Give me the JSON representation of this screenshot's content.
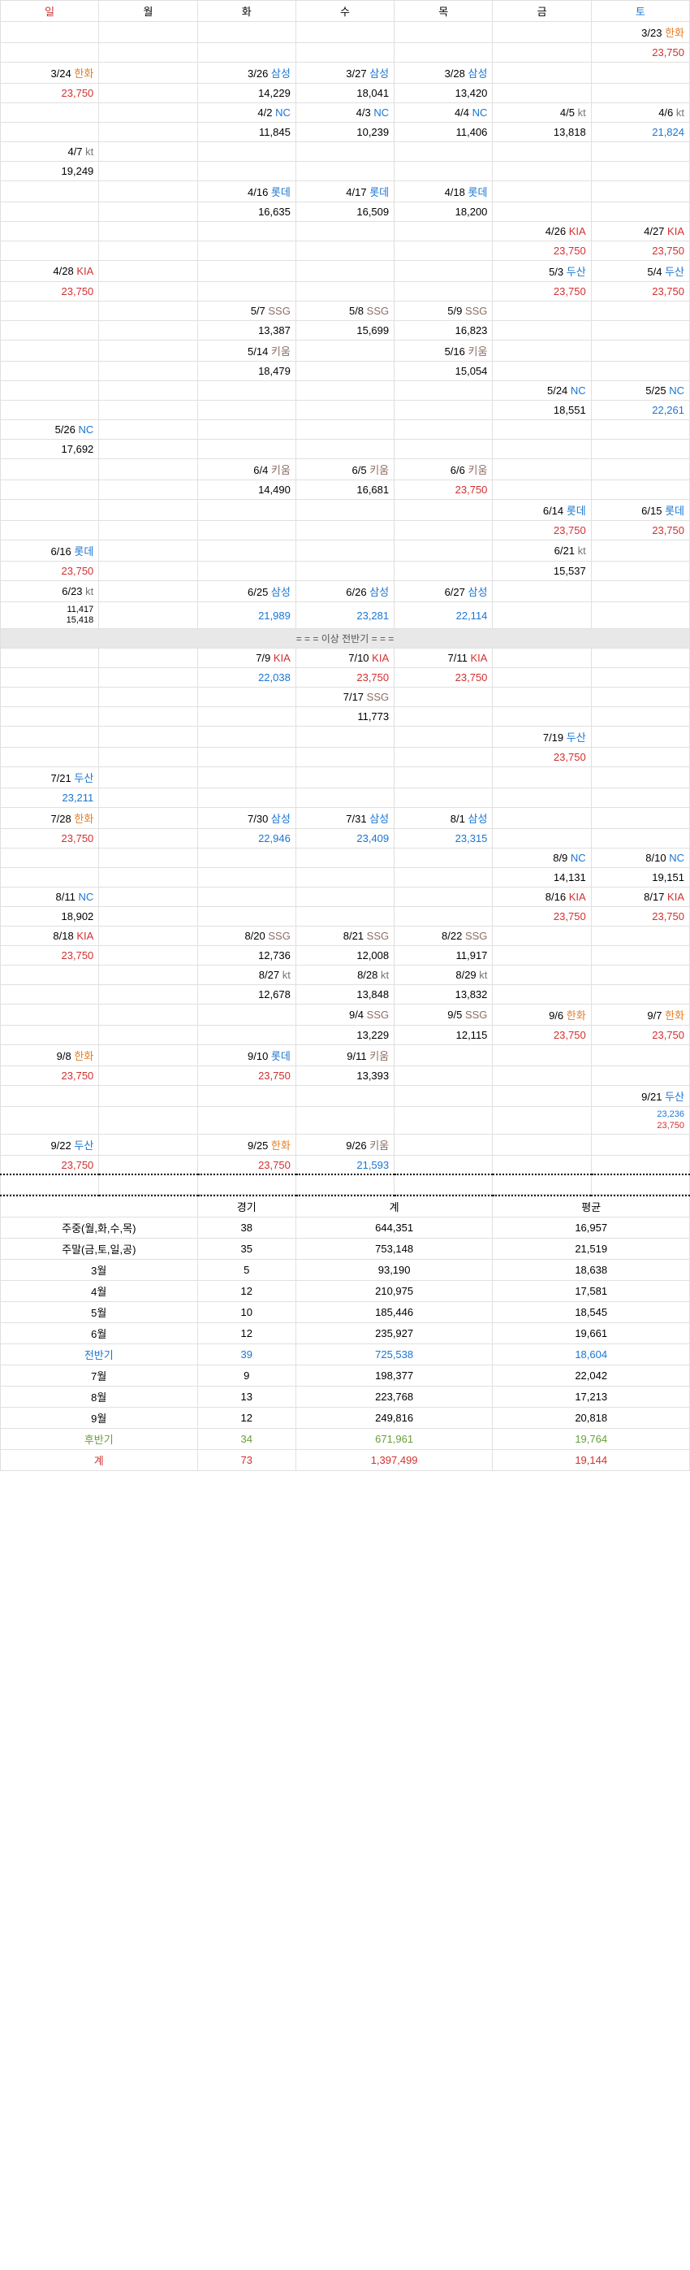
{
  "headers": [
    {
      "label": "일",
      "color": "c-red"
    },
    {
      "label": "월",
      "color": "c-black"
    },
    {
      "label": "화",
      "color": "c-black"
    },
    {
      "label": "수",
      "color": "c-black"
    },
    {
      "label": "목",
      "color": "c-black"
    },
    {
      "label": "금",
      "color": "c-black"
    },
    {
      "label": "토",
      "color": "c-blue"
    }
  ],
  "teams": {
    "hanwha": {
      "label": "한화",
      "color": "c-orange"
    },
    "samsung": {
      "label": "삼성",
      "color": "c-blue"
    },
    "nc": {
      "label": "NC",
      "color": "c-blue"
    },
    "kt": {
      "label": "kt",
      "color": "c-gray"
    },
    "lotte": {
      "label": "롯데",
      "color": "c-blue"
    },
    "kia": {
      "label": "KIA",
      "color": "c-red"
    },
    "doosan": {
      "label": "두산",
      "color": "c-blue"
    },
    "ssg": {
      "label": "SSG",
      "color": "c-brown"
    },
    "kiwoom": {
      "label": "키움",
      "color": "c-brown"
    }
  },
  "rows": [
    {
      "cells": [
        null,
        null,
        null,
        null,
        null,
        null,
        {
          "date": "3/23",
          "team": "hanwha"
        }
      ]
    },
    {
      "cells": [
        null,
        null,
        null,
        null,
        null,
        null,
        {
          "att": "23,750",
          "hl": true
        }
      ]
    },
    {
      "cells": [
        {
          "date": "3/24",
          "team": "hanwha"
        },
        null,
        {
          "date": "3/26",
          "team": "samsung"
        },
        {
          "date": "3/27",
          "team": "samsung"
        },
        {
          "date": "3/28",
          "team": "samsung"
        },
        null,
        null
      ]
    },
    {
      "cells": [
        {
          "att": "23,750",
          "hl": true
        },
        null,
        {
          "att": "14,229"
        },
        {
          "att": "18,041"
        },
        {
          "att": "13,420"
        },
        null,
        null
      ]
    },
    {
      "cells": [
        null,
        null,
        {
          "date": "4/2",
          "team": "nc"
        },
        {
          "date": "4/3",
          "team": "nc"
        },
        {
          "date": "4/4",
          "team": "nc"
        },
        {
          "date": "4/5",
          "team": "kt"
        },
        {
          "date": "4/6",
          "team": "kt"
        }
      ]
    },
    {
      "cells": [
        null,
        null,
        {
          "att": "11,845"
        },
        {
          "att": "10,239"
        },
        {
          "att": "11,406"
        },
        {
          "att": "13,818"
        },
        {
          "att": "21,824",
          "color": "c-blue"
        }
      ]
    },
    {
      "cells": [
        {
          "date": "4/7",
          "team": "kt"
        },
        null,
        null,
        null,
        null,
        null,
        null
      ]
    },
    {
      "cells": [
        {
          "att": "19,249"
        },
        null,
        null,
        null,
        null,
        null,
        null
      ]
    },
    {
      "cells": [
        null,
        null,
        {
          "date": "4/16",
          "team": "lotte"
        },
        {
          "date": "4/17",
          "team": "lotte"
        },
        {
          "date": "4/18",
          "team": "lotte"
        },
        null,
        null
      ]
    },
    {
      "cells": [
        null,
        null,
        {
          "att": "16,635"
        },
        {
          "att": "16,509"
        },
        {
          "att": "18,200"
        },
        null,
        null
      ]
    },
    {
      "cells": [
        null,
        null,
        null,
        null,
        null,
        {
          "date": "4/26",
          "team": "kia"
        },
        {
          "date": "4/27",
          "team": "kia"
        }
      ]
    },
    {
      "cells": [
        null,
        null,
        null,
        null,
        null,
        {
          "att": "23,750",
          "hl": true
        },
        {
          "att": "23,750",
          "hl": true
        }
      ]
    },
    {
      "cells": [
        {
          "date": "4/28",
          "team": "kia"
        },
        null,
        null,
        null,
        null,
        {
          "date": "5/3",
          "team": "doosan"
        },
        {
          "date": "5/4",
          "team": "doosan"
        }
      ]
    },
    {
      "cells": [
        {
          "att": "23,750",
          "hl": true
        },
        null,
        null,
        null,
        null,
        {
          "att": "23,750",
          "hl": true
        },
        {
          "att": "23,750",
          "hl": true
        }
      ]
    },
    {
      "cells": [
        null,
        null,
        {
          "date": "5/7",
          "team": "ssg"
        },
        {
          "date": "5/8",
          "team": "ssg"
        },
        {
          "date": "5/9",
          "team": "ssg"
        },
        null,
        null
      ]
    },
    {
      "cells": [
        null,
        null,
        {
          "att": "13,387"
        },
        {
          "att": "15,699"
        },
        {
          "att": "16,823"
        },
        null,
        null
      ]
    },
    {
      "cells": [
        null,
        null,
        {
          "date": "5/14",
          "team": "kiwoom"
        },
        null,
        {
          "date": "5/16",
          "team": "kiwoom"
        },
        null,
        null
      ]
    },
    {
      "cells": [
        null,
        null,
        {
          "att": "18,479"
        },
        null,
        {
          "att": "15,054"
        },
        null,
        null
      ]
    },
    {
      "cells": [
        null,
        null,
        null,
        null,
        null,
        {
          "date": "5/24",
          "team": "nc"
        },
        {
          "date": "5/25",
          "team": "nc"
        }
      ]
    },
    {
      "cells": [
        null,
        null,
        null,
        null,
        null,
        {
          "att": "18,551"
        },
        {
          "att": "22,261",
          "color": "c-blue"
        }
      ]
    },
    {
      "cells": [
        {
          "date": "5/26",
          "team": "nc"
        },
        null,
        null,
        null,
        null,
        null,
        null
      ]
    },
    {
      "cells": [
        {
          "att": "17,692"
        },
        null,
        null,
        null,
        null,
        null,
        null
      ]
    },
    {
      "cells": [
        null,
        null,
        {
          "date": "6/4",
          "team": "kiwoom"
        },
        {
          "date": "6/5",
          "team": "kiwoom"
        },
        {
          "date": "6/6",
          "team": "kiwoom"
        },
        null,
        null
      ]
    },
    {
      "cells": [
        null,
        null,
        {
          "att": "14,490"
        },
        {
          "att": "16,681"
        },
        {
          "att": "23,750",
          "hl": true
        },
        null,
        null
      ]
    },
    {
      "cells": [
        null,
        null,
        null,
        null,
        null,
        {
          "date": "6/14",
          "team": "lotte"
        },
        {
          "date": "6/15",
          "team": "lotte"
        }
      ]
    },
    {
      "cells": [
        null,
        null,
        null,
        null,
        null,
        {
          "att": "23,750",
          "hl": true
        },
        {
          "att": "23,750",
          "hl": true
        }
      ]
    },
    {
      "cells": [
        {
          "date": "6/16",
          "team": "lotte"
        },
        null,
        null,
        null,
        null,
        {
          "date": "6/21",
          "team": "kt"
        },
        null
      ]
    },
    {
      "cells": [
        {
          "att": "23,750",
          "hl": true
        },
        null,
        null,
        null,
        null,
        {
          "att": "15,537"
        },
        null
      ]
    },
    {
      "cells": [
        {
          "date": "6/23",
          "team": "kt"
        },
        null,
        {
          "date": "6/25",
          "team": "samsung"
        },
        {
          "date": "6/26",
          "team": "samsung"
        },
        {
          "date": "6/27",
          "team": "samsung"
        },
        null,
        null
      ]
    },
    {
      "cells": [
        {
          "stack": [
            "11,417",
            "15,418"
          ]
        },
        null,
        {
          "att": "21,989",
          "color": "c-blue"
        },
        {
          "att": "23,281",
          "color": "c-blue"
        },
        {
          "att": "22,114",
          "color": "c-blue"
        },
        null,
        null
      ]
    },
    {
      "divider": "= = = 이상 전반기 = = ="
    },
    {
      "cells": [
        null,
        null,
        {
          "date": "7/9",
          "team": "kia"
        },
        {
          "date": "7/10",
          "team": "kia"
        },
        {
          "date": "7/11",
          "team": "kia"
        },
        null,
        null
      ]
    },
    {
      "cells": [
        null,
        null,
        {
          "att": "22,038",
          "color": "c-blue"
        },
        {
          "att": "23,750",
          "hl": true
        },
        {
          "att": "23,750",
          "hl": true
        },
        null,
        null
      ]
    },
    {
      "cells": [
        null,
        null,
        null,
        {
          "date": "7/17",
          "team": "ssg"
        },
        null,
        null,
        null
      ]
    },
    {
      "cells": [
        null,
        null,
        null,
        {
          "att": "11,773"
        },
        null,
        null,
        null
      ]
    },
    {
      "cells": [
        null,
        null,
        null,
        null,
        null,
        {
          "date": "7/19",
          "team": "doosan"
        },
        null
      ]
    },
    {
      "cells": [
        null,
        null,
        null,
        null,
        null,
        {
          "att": "23,750",
          "hl": true
        },
        null
      ]
    },
    {
      "cells": [
        {
          "date": "7/21",
          "team": "doosan"
        },
        null,
        null,
        null,
        null,
        null,
        null
      ]
    },
    {
      "cells": [
        {
          "att": "23,211",
          "color": "c-blue"
        },
        null,
        null,
        null,
        null,
        null,
        null
      ]
    },
    {
      "cells": [
        {
          "date": "7/28",
          "team": "hanwha"
        },
        null,
        {
          "date": "7/30",
          "team": "samsung"
        },
        {
          "date": "7/31",
          "team": "samsung"
        },
        {
          "date": "8/1",
          "team": "samsung"
        },
        null,
        null
      ]
    },
    {
      "cells": [
        {
          "att": "23,750",
          "hl": true
        },
        null,
        {
          "att": "22,946",
          "color": "c-blue"
        },
        {
          "att": "23,409",
          "color": "c-blue"
        },
        {
          "att": "23,315",
          "color": "c-blue"
        },
        null,
        null
      ]
    },
    {
      "cells": [
        null,
        null,
        null,
        null,
        null,
        {
          "date": "8/9",
          "team": "nc"
        },
        {
          "date": "8/10",
          "team": "nc"
        }
      ]
    },
    {
      "cells": [
        null,
        null,
        null,
        null,
        null,
        {
          "att": "14,131"
        },
        {
          "att": "19,151"
        }
      ]
    },
    {
      "cells": [
        {
          "date": "8/11",
          "team": "nc"
        },
        null,
        null,
        null,
        null,
        {
          "date": "8/16",
          "team": "kia"
        },
        {
          "date": "8/17",
          "team": "kia"
        }
      ]
    },
    {
      "cells": [
        {
          "att": "18,902"
        },
        null,
        null,
        null,
        null,
        {
          "att": "23,750",
          "hl": true
        },
        {
          "att": "23,750",
          "hl": true
        }
      ]
    },
    {
      "cells": [
        {
          "date": "8/18",
          "team": "kia"
        },
        null,
        {
          "date": "8/20",
          "team": "ssg"
        },
        {
          "date": "8/21",
          "team": "ssg"
        },
        {
          "date": "8/22",
          "team": "ssg"
        },
        null,
        null
      ]
    },
    {
      "cells": [
        {
          "att": "23,750",
          "hl": true
        },
        null,
        {
          "att": "12,736"
        },
        {
          "att": "12,008"
        },
        {
          "att": "11,917"
        },
        null,
        null
      ]
    },
    {
      "cells": [
        null,
        null,
        {
          "date": "8/27",
          "team": "kt"
        },
        {
          "date": "8/28",
          "team": "kt"
        },
        {
          "date": "8/29",
          "team": "kt"
        },
        null,
        null
      ]
    },
    {
      "cells": [
        null,
        null,
        {
          "att": "12,678"
        },
        {
          "att": "13,848"
        },
        {
          "att": "13,832"
        },
        null,
        null
      ]
    },
    {
      "cells": [
        null,
        null,
        null,
        {
          "date": "9/4",
          "team": "ssg"
        },
        {
          "date": "9/5",
          "team": "ssg"
        },
        {
          "date": "9/6",
          "team": "hanwha"
        },
        {
          "date": "9/7",
          "team": "hanwha"
        }
      ]
    },
    {
      "cells": [
        null,
        null,
        null,
        {
          "att": "13,229"
        },
        {
          "att": "12,115"
        },
        {
          "att": "23,750",
          "hl": true
        },
        {
          "att": "23,750",
          "hl": true
        }
      ]
    },
    {
      "cells": [
        {
          "date": "9/8",
          "team": "hanwha"
        },
        null,
        {
          "date": "9/10",
          "team": "lotte"
        },
        {
          "date": "9/11",
          "team": "kiwoom"
        },
        null,
        null,
        null
      ]
    },
    {
      "cells": [
        {
          "att": "23,750",
          "hl": true
        },
        null,
        {
          "att": "23,750",
          "hl": true
        },
        {
          "att": "13,393"
        },
        null,
        null,
        null
      ]
    },
    {
      "cells": [
        null,
        null,
        null,
        null,
        null,
        null,
        {
          "date": "9/21",
          "team": "doosan"
        }
      ]
    },
    {
      "cells": [
        null,
        null,
        null,
        null,
        null,
        null,
        {
          "stack": [
            "23,236",
            "23,750"
          ],
          "stackColors": [
            "c-blue",
            "c-red"
          ]
        }
      ]
    },
    {
      "cells": [
        {
          "date": "9/22",
          "team": "doosan"
        },
        null,
        {
          "date": "9/25",
          "team": "hanwha"
        },
        {
          "date": "9/26",
          "team": "kiwoom"
        },
        null,
        null,
        null
      ]
    },
    {
      "cells": [
        {
          "att": "23,750",
          "hl": true
        },
        null,
        {
          "att": "23,750",
          "hl": true
        },
        {
          "att": "21,593",
          "color": "c-blue"
        },
        null,
        null,
        null
      ]
    },
    {
      "dashed": true,
      "cells": [
        null,
        null,
        null,
        null,
        null,
        null,
        null
      ]
    }
  ],
  "summaryHeader": {
    "games": "경기",
    "total": "계",
    "avg": "평균"
  },
  "summary": [
    {
      "label": "주중(월,화,수,목)",
      "games": "38",
      "total": "644,351",
      "avg": "16,957"
    },
    {
      "label": "주말(금,토,일,공)",
      "games": "35",
      "total": "753,148",
      "avg": "21,519"
    },
    {
      "label": "3월",
      "games": "5",
      "total": "93,190",
      "avg": "18,638"
    },
    {
      "label": "4월",
      "games": "12",
      "total": "210,975",
      "avg": "17,581"
    },
    {
      "label": "5월",
      "games": "10",
      "total": "185,446",
      "avg": "18,545"
    },
    {
      "label": "6월",
      "games": "12",
      "total": "235,927",
      "avg": "19,661"
    },
    {
      "label": "전반기",
      "games": "39",
      "total": "725,538",
      "avg": "18,604",
      "color": "c-blue"
    },
    {
      "label": "7월",
      "games": "9",
      "total": "198,377",
      "avg": "22,042"
    },
    {
      "label": "8월",
      "games": "13",
      "total": "223,768",
      "avg": "17,213"
    },
    {
      "label": "9월",
      "games": "12",
      "total": "249,816",
      "avg": "20,818"
    },
    {
      "label": "후반기",
      "games": "34",
      "total": "671,961",
      "avg": "19,764",
      "color": "c-green"
    },
    {
      "label": "계",
      "games": "73",
      "total": "1,397,499",
      "avg": "19,144",
      "color": "c-red"
    }
  ]
}
